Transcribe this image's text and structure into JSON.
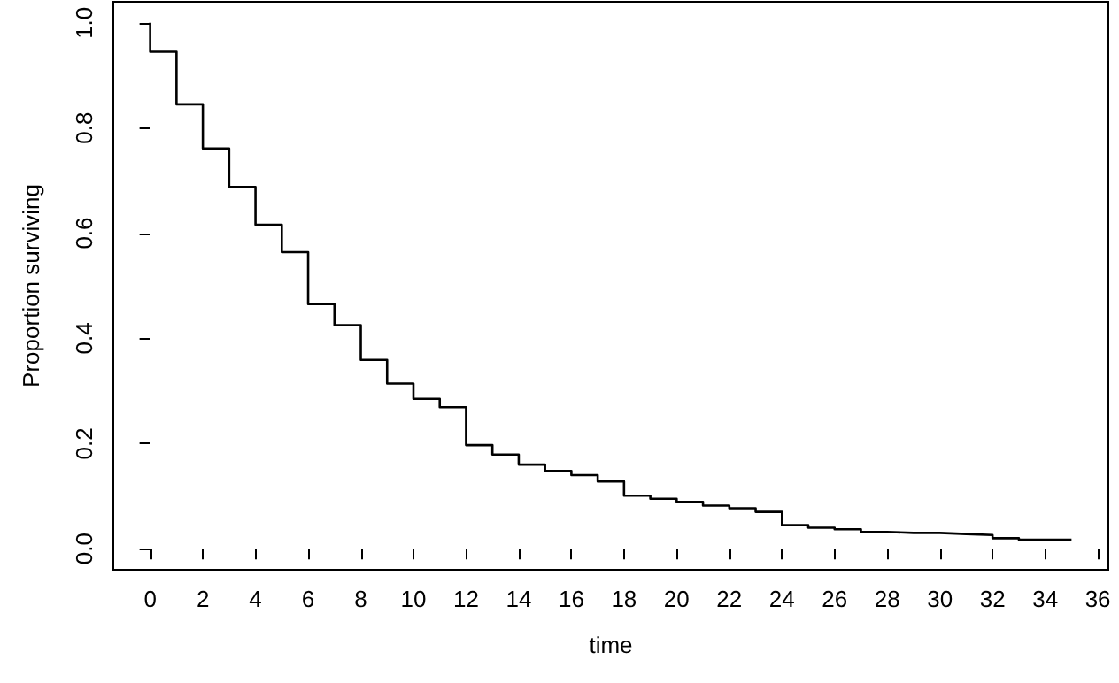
{
  "chart_data": {
    "type": "step",
    "xlabel": "time",
    "ylabel": "Proportion surviving",
    "x": [
      0,
      0,
      1,
      2,
      3,
      4,
      5,
      6,
      7,
      8,
      9,
      10,
      11,
      12,
      13,
      14,
      15,
      16,
      17,
      18,
      19,
      20,
      21,
      22,
      23,
      24,
      25,
      26,
      27,
      28,
      29,
      30,
      31,
      32,
      33,
      34,
      35
    ],
    "series": [
      {
        "color": "#000000",
        "values": [
          1.0,
          0.945,
          0.845,
          0.761,
          0.688,
          0.616,
          0.564,
          0.465,
          0.425,
          0.359,
          0.314,
          0.285,
          0.269,
          0.197,
          0.179,
          0.16,
          0.148,
          0.14,
          0.128,
          0.101,
          0.095,
          0.089,
          0.082,
          0.077,
          0.07,
          0.045,
          0.04,
          0.037,
          0.032,
          0.03,
          0.03,
          0.028,
          0.026,
          0.02,
          0.017,
          0.017,
          0.015
        ]
      }
    ],
    "xlim": [
      -1.4,
      36.4
    ],
    "xticks": [
      0,
      2,
      4,
      6,
      8,
      10,
      12,
      14,
      16,
      18,
      20,
      22,
      24,
      26,
      28,
      30,
      32,
      34,
      36
    ],
    "ylim": [
      -0.04,
      1.04
    ],
    "yticks": [
      {
        "value": 0,
        "label": "0.0"
      },
      0.2,
      0.4,
      0.6,
      0.8,
      {
        "value": 1,
        "label": "1.0"
      }
    ],
    "grid": false,
    "marker": "none",
    "line_style": "solid"
  }
}
